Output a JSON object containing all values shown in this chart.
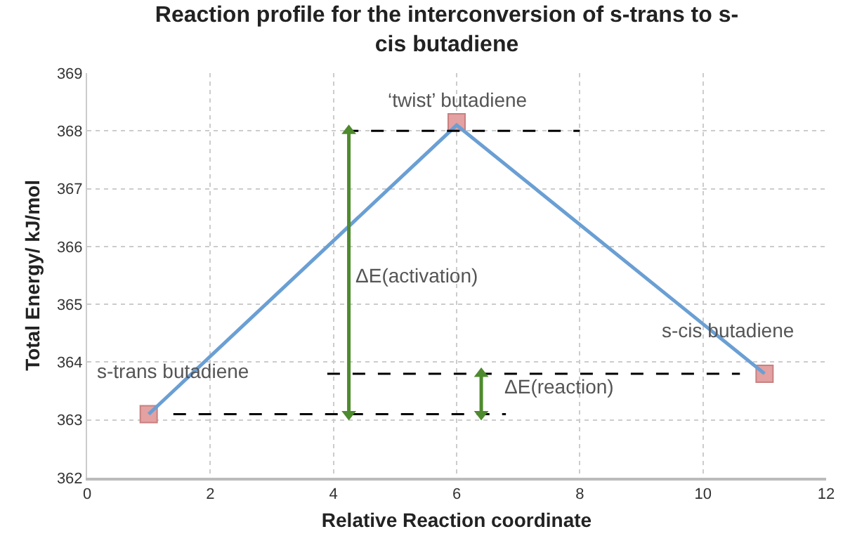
{
  "chart_data": {
    "type": "line",
    "title": "Reaction profile for the interconversion of s-trans to s-\ncis butadiene",
    "xlabel": "Relative Reaction coordinate",
    "ylabel": "Total Energy/ kJ/mol",
    "x": [
      1,
      6,
      11
    ],
    "series": [
      {
        "type": "scatter",
        "color": "#e3a1a1",
        "marker": "square",
        "values": [
          363.1,
          368.15,
          363.8
        ]
      },
      {
        "color": "#6a9fd4",
        "marker": "none",
        "values": [
          363.1,
          368.1,
          363.8
        ]
      },
      {
        "type": "line",
        "color": "#000000",
        "line_style": "dashed",
        "x": [
          4.2,
          8
        ],
        "values": [
          368,
          368
        ]
      },
      {
        "type": "line",
        "color": "#000000",
        "line_style": "dashed",
        "x": [
          1.4,
          6.8
        ],
        "values": [
          363.1,
          363.1
        ]
      },
      {
        "type": "line",
        "color": "#000000",
        "line_style": "dashed",
        "x": [
          3.9,
          10.6
        ],
        "values": [
          363.8,
          363.8
        ]
      },
      {
        "type": "line",
        "color": "#4e8a2e",
        "marker": "triangle",
        "x": [
          4.25,
          4.25
        ],
        "values": [
          363.1,
          368
        ]
      },
      {
        "type": "line",
        "color": "#4e8a2e",
        "marker": "triangle",
        "x": [
          6.4,
          6.4
        ],
        "values": [
          363.1,
          363.8
        ]
      }
    ],
    "annotations": [
      "s-trans butadiene",
      "‘twist’ butadiene",
      "s-cis butadiene",
      "ΔE(activation)",
      "ΔE(reaction)"
    ],
    "xlim": [
      0,
      12
    ],
    "xticks": [
      0,
      2,
      4,
      6,
      8,
      10,
      12
    ],
    "ylim": [
      362,
      369
    ],
    "yticks": [
      362,
      363,
      364,
      365,
      366,
      367,
      368,
      369
    ],
    "grid": true
  }
}
